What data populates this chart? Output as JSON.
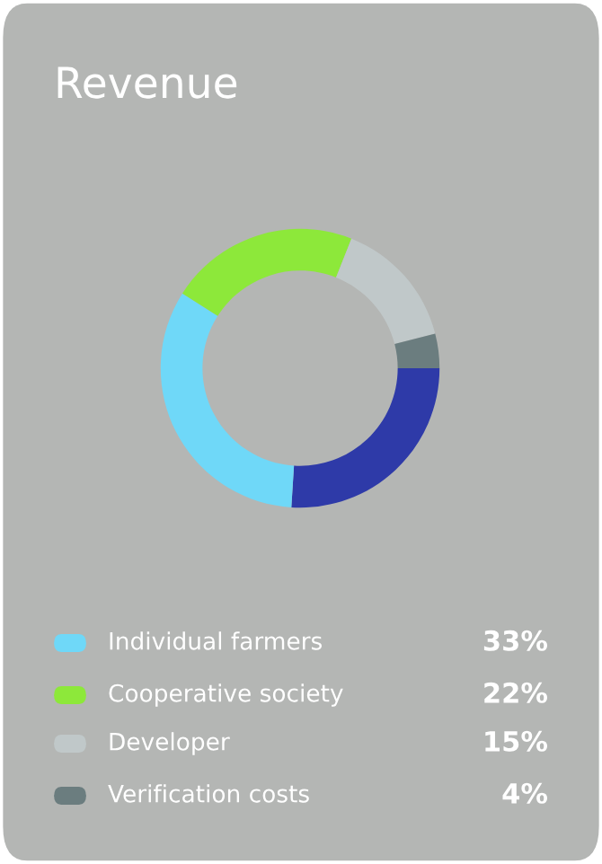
{
  "chart_data": {
    "type": "donut",
    "title": "Revenue",
    "categories": [
      null,
      "Individual farmers",
      "Cooperative society",
      "Developer",
      "Verification costs"
    ],
    "values": [
      26,
      33,
      22,
      15,
      4
    ],
    "colors": [
      "#2e3aa8",
      "#6fd8f8",
      "#8de83a",
      "#c0c8c9",
      "#6b7d7f"
    ],
    "value_labels": [
      null,
      "33%",
      "22%",
      "15%",
      "4%"
    ],
    "legend": "bottom"
  }
}
